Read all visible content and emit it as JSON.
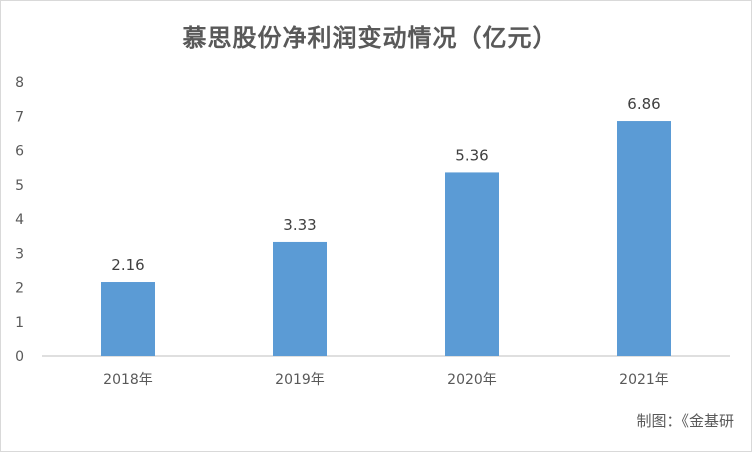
{
  "chart_data": {
    "type": "bar",
    "title": "慕思股份净利润变动情况（亿元）",
    "categories": [
      "2018年",
      "2019年",
      "2020年",
      "2021年"
    ],
    "values": [
      2.16,
      3.33,
      5.36,
      6.86
    ],
    "data_labels": [
      "2.16",
      "3.33",
      "5.36",
      "6.86"
    ],
    "yticks": [
      "0",
      "1",
      "2",
      "3",
      "4",
      "5",
      "6",
      "7",
      "8"
    ],
    "ylim": [
      0,
      8
    ],
    "grid": false,
    "bar_color": "#5b9bd5",
    "axis_color": "#bfbfbf"
  },
  "footer": {
    "source": "制图：《金基研"
  }
}
